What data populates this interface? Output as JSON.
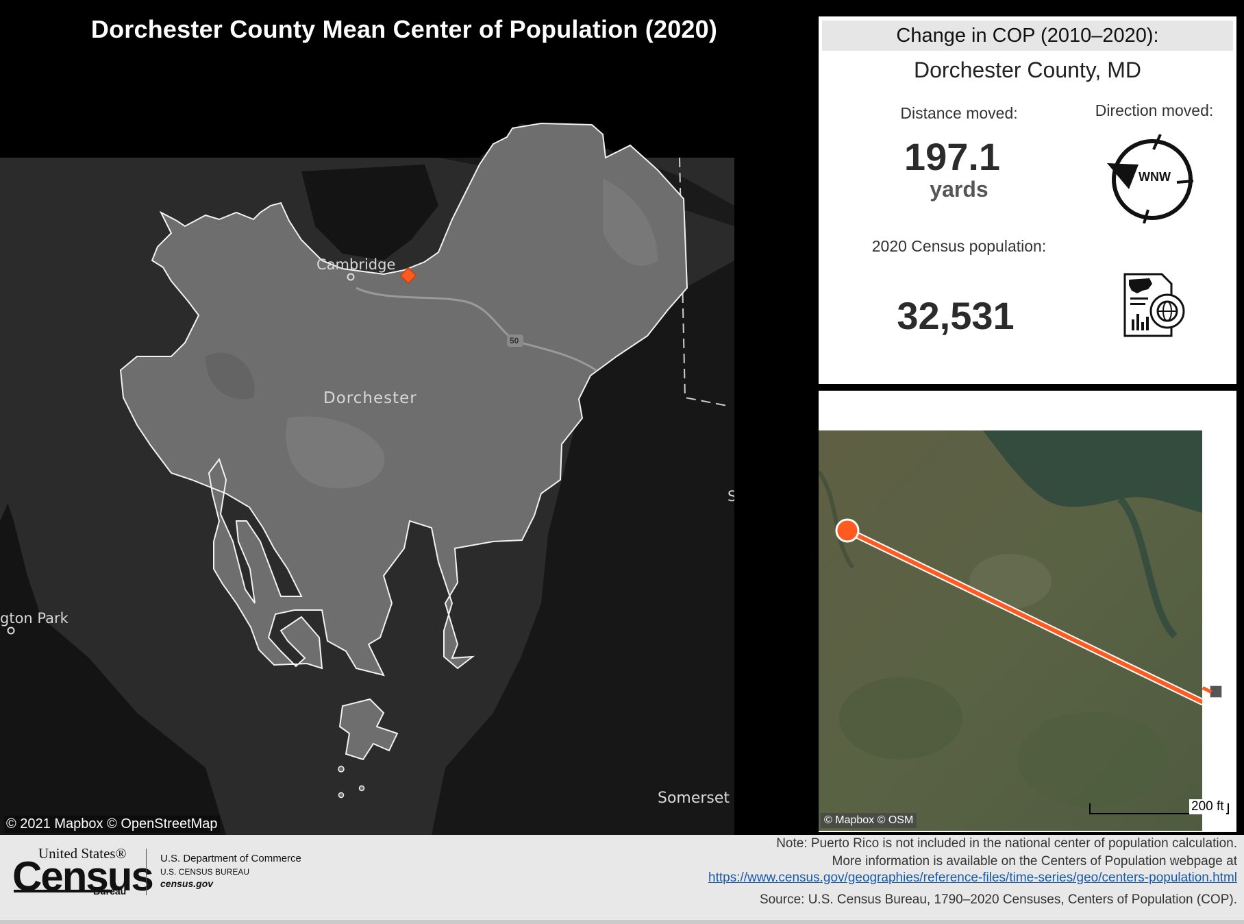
{
  "title": "Dorchester County Mean Center of Population (2020)",
  "main_map": {
    "labels": {
      "cambridge": "Cambridge",
      "county": "Dorchester",
      "park": "gton Park",
      "somerset": "Somerset",
      "route": "50",
      "edge_letter": "S"
    },
    "attribution": "© 2021 Mapbox  © OpenStreetMap",
    "colors": {
      "county_fill": "#6e6e6e",
      "background": "#2b2b2b",
      "marker": "#ff5a1f"
    }
  },
  "info_panel": {
    "header": "Change in COP (2010–2020):",
    "county": "Dorchester County, MD",
    "distance_label": "Distance moved:",
    "distance_value": "197.1",
    "distance_unit": "yards",
    "direction_label": "Direction moved:",
    "direction_value": "WNW",
    "population_label": "2020 Census population:",
    "population_value": "32,531",
    "icons": [
      "compass-arrow-icon",
      "census-document-globe-icon"
    ]
  },
  "detail_map": {
    "attribution": "© Mapbox  © OSM",
    "scale": "200 ft",
    "colors": {
      "line": "#ff5a1f",
      "old_center": "#555555"
    }
  },
  "footer": {
    "logo_top": "United States®",
    "logo_main": "Census",
    "logo_bureau": "Bureau",
    "dept": "U.S. Department of Commerce",
    "bureau": "U.S. CENSUS BUREAU",
    "website": "census.gov",
    "note1": "Note: Puerto Rico is not included in the national center of population calculation.",
    "note2": "More information is available on the Centers of Population webpage at",
    "link": "https://www.census.gov/geographies/reference-files/time-series/geo/centers-population.html",
    "source": "Source: U.S. Census Bureau, 1790–2020 Censuses, Centers of Population (COP)."
  }
}
